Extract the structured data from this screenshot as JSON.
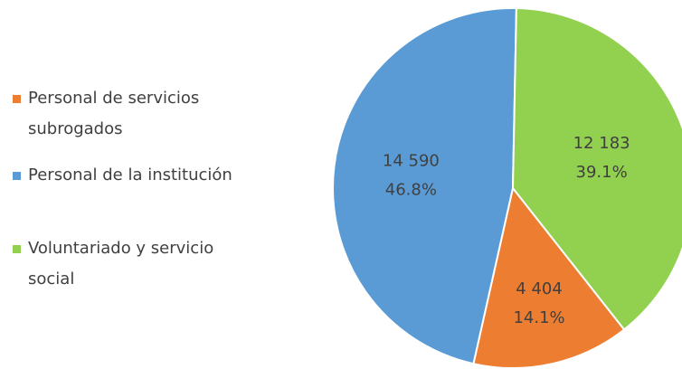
{
  "chart_data": {
    "type": "pie",
    "categories": [
      "Personal de servicios subrogados",
      "Personal de la institución",
      "Voluntariado y servicio social"
    ],
    "values": [
      4404,
      14590,
      12183
    ],
    "value_labels": [
      "4 404",
      "14 590",
      "12 183"
    ],
    "percent_labels": [
      "14.1%",
      "46.8%",
      "39.1%"
    ],
    "colors": [
      "#ed7d31",
      "#5b9bd5",
      "#92d050"
    ],
    "legend": "left"
  }
}
